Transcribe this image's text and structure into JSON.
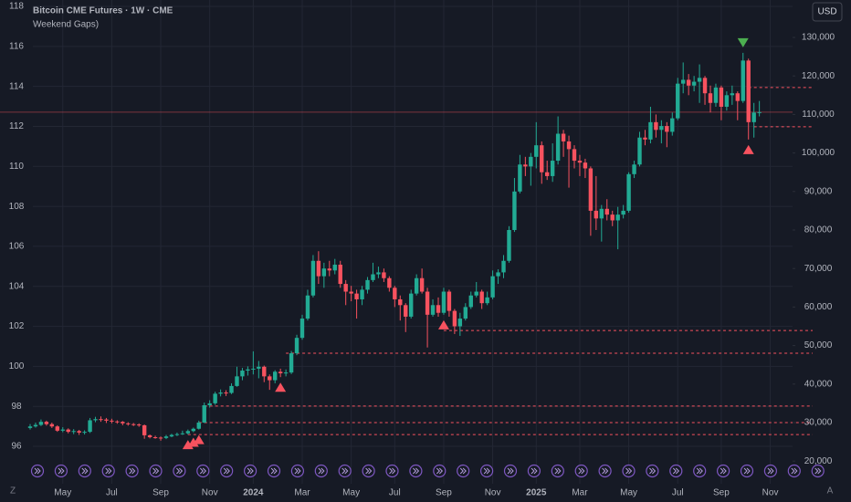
{
  "chart_data": {
    "type": "candlestick",
    "title": "Bitcoin CME Futures · 1W · CME",
    "subtitle": "Weekend Gaps)",
    "currency": "USD",
    "corner_left": "Z",
    "corner_right": "A",
    "up_color": "#22ab94",
    "down_color": "#f7525f",
    "categories": [
      null,
      null,
      null,
      null,
      null,
      null,
      "May",
      null,
      null,
      null,
      null,
      null,
      null,
      null,
      null,
      "Jul",
      null,
      null,
      null,
      null,
      null,
      null,
      null,
      null,
      "Sep",
      null,
      null,
      null,
      null,
      null,
      null,
      null,
      null,
      "Nov",
      null,
      null,
      null,
      null,
      null,
      null,
      null,
      "2024",
      null,
      null,
      null,
      null,
      null,
      null,
      null,
      null,
      "Mar",
      null,
      null,
      null,
      null,
      null,
      null,
      null,
      null,
      "May",
      null,
      null,
      null,
      null,
      null,
      null,
      null,
      "Jul",
      null,
      null,
      null,
      null,
      null,
      null,
      null,
      null,
      "Sep",
      null,
      null,
      null,
      null,
      null,
      null,
      null,
      null,
      "Nov",
      null,
      null,
      null,
      null,
      null,
      null,
      null,
      "2025",
      null,
      null,
      null,
      null,
      null,
      null,
      null,
      "Mar",
      null,
      null,
      null,
      null,
      null,
      null,
      null,
      null,
      "May",
      null,
      null,
      null,
      null,
      null,
      null,
      null,
      null,
      "Jul",
      null,
      null,
      null,
      null,
      null,
      null,
      null,
      "Sep",
      null,
      null,
      null,
      null,
      null,
      null,
      null,
      null,
      "Nov"
    ],
    "open": [
      28600,
      29000,
      29400,
      30200,
      29600,
      29000,
      27900,
      28200,
      27600,
      27800,
      27400,
      27600,
      30600,
      30900,
      30800,
      30500,
      30300,
      30200,
      29800,
      29600,
      29500,
      29300,
      26700,
      26200,
      26100,
      26000,
      26400,
      26800,
      27000,
      27200,
      27800,
      28400,
      30000,
      34500,
      35000,
      37500,
      37800,
      37700,
      39500,
      42000,
      43500,
      43800,
      44000,
      44500,
      42000,
      41000,
      43200,
      42800,
      43000,
      48000,
      52000,
      57000,
      63000,
      72000,
      68000,
      70000,
      69500,
      71000,
      66000,
      64000,
      63500,
      62000,
      64500,
      67000,
      68500,
      69000,
      67500,
      65000,
      62000,
      60500,
      57500,
      63500,
      67500,
      64000,
      58000,
      60500,
      58500,
      64000,
      59000,
      55000,
      57000,
      60000,
      63000,
      64000,
      61000,
      62500,
      68000,
      69000,
      72000,
      80000,
      90000,
      97000,
      96500,
      99000,
      102000,
      95000,
      94000,
      98000,
      105000,
      103000,
      101000,
      98000,
      97500,
      96000,
      85000,
      83000,
      85500,
      84000,
      82500,
      84000,
      85000,
      94500,
      97000,
      104000,
      103500,
      108000,
      106000,
      107000,
      105500,
      109000,
      118000,
      119000,
      117500,
      118500,
      119500,
      115500,
      113000,
      117000,
      112000,
      115000,
      115500,
      113500,
      124000,
      108000,
      110500,
      null,
      null
    ],
    "high": [
      29600,
      30000,
      30800,
      30500,
      30000,
      29300,
      28800,
      28500,
      28300,
      28100,
      28000,
      31200,
      31500,
      31600,
      31200,
      31000,
      30600,
      30400,
      30100,
      29900,
      29800,
      29500,
      26900,
      26600,
      26400,
      26800,
      27100,
      27400,
      27900,
      28200,
      28700,
      30500,
      35200,
      35800,
      38000,
      38600,
      38400,
      40200,
      44500,
      44200,
      44600,
      48500,
      46000,
      44800,
      42500,
      43600,
      44000,
      43800,
      48600,
      52800,
      58000,
      64500,
      73500,
      74500,
      71500,
      72000,
      72500,
      72000,
      67000,
      65500,
      64500,
      65500,
      67800,
      71500,
      70500,
      70000,
      68000,
      65500,
      63000,
      61000,
      64500,
      68500,
      70000,
      65000,
      62000,
      62500,
      65000,
      64500,
      59500,
      58500,
      61000,
      64000,
      66500,
      64500,
      64000,
      69500,
      69800,
      73500,
      81000,
      93500,
      99500,
      99000,
      100000,
      108000,
      103000,
      98000,
      102500,
      109500,
      106000,
      104500,
      102000,
      99500,
      98500,
      96500,
      94000,
      86500,
      88000,
      85000,
      86000,
      86500,
      95000,
      98000,
      105500,
      106000,
      112000,
      110000,
      108500,
      108000,
      110500,
      119500,
      123500,
      120500,
      120000,
      123000,
      120000,
      117500,
      118000,
      117500,
      116000,
      117500,
      116000,
      126000,
      124500,
      113000,
      113500,
      null,
      null
    ],
    "low": [
      28200,
      28700,
      29100,
      29200,
      28600,
      27600,
      27500,
      27200,
      27000,
      26800,
      26900,
      27300,
      30100,
      30200,
      29900,
      29800,
      29700,
      29300,
      29200,
      29100,
      28900,
      25800,
      25900,
      25800,
      25300,
      25700,
      26200,
      26500,
      26800,
      26900,
      27500,
      28200,
      29900,
      33900,
      34600,
      36800,
      36900,
      37400,
      39300,
      41000,
      42200,
      42500,
      41500,
      40500,
      38500,
      40200,
      41800,
      42000,
      42600,
      47500,
      51500,
      56500,
      62500,
      66000,
      65000,
      68000,
      68500,
      65000,
      60500,
      61500,
      57000,
      60500,
      63500,
      66500,
      67500,
      66500,
      64000,
      60000,
      56500,
      53500,
      57000,
      63000,
      63500,
      49500,
      57500,
      57500,
      58000,
      57500,
      53000,
      52500,
      56500,
      59500,
      62500,
      59500,
      60500,
      62000,
      66000,
      67500,
      71500,
      79500,
      89500,
      94000,
      91500,
      96000,
      92000,
      93000,
      92500,
      97000,
      99000,
      91000,
      96000,
      94000,
      93500,
      78500,
      80000,
      77000,
      82500,
      81000,
      75000,
      83000,
      84500,
      93500,
      96500,
      102000,
      102500,
      104000,
      102500,
      101500,
      104500,
      108500,
      115500,
      115000,
      116000,
      113000,
      112500,
      110500,
      112000,
      108500,
      111000,
      112500,
      108500,
      113000,
      103500,
      104000,
      109500,
      null,
      null
    ],
    "close": [
      29000,
      29400,
      30200,
      29600,
      29000,
      27900,
      28200,
      27600,
      27800,
      27400,
      27600,
      30600,
      30900,
      30800,
      30500,
      30300,
      30200,
      29800,
      29600,
      29500,
      29300,
      26700,
      26200,
      26100,
      26000,
      26400,
      26800,
      27000,
      27200,
      27800,
      28400,
      30000,
      34500,
      35000,
      37500,
      37800,
      37700,
      39500,
      42000,
      43500,
      43800,
      44000,
      44500,
      42000,
      41000,
      43200,
      42800,
      43000,
      48000,
      52000,
      57000,
      63000,
      72000,
      68000,
      70000,
      69500,
      71000,
      66000,
      64000,
      63500,
      62000,
      64500,
      67000,
      68500,
      69000,
      67500,
      65000,
      62000,
      60500,
      57500,
      63500,
      67500,
      64000,
      58000,
      60500,
      58500,
      64000,
      59000,
      55000,
      57000,
      60000,
      63000,
      64000,
      61000,
      62500,
      68000,
      69000,
      72000,
      80000,
      90000,
      97000,
      96500,
      99000,
      102000,
      95000,
      94000,
      98000,
      105000,
      103000,
      101000,
      98000,
      97500,
      96000,
      85000,
      83000,
      85500,
      84000,
      82500,
      84000,
      85000,
      94500,
      97000,
      104000,
      103500,
      108000,
      106000,
      107000,
      105500,
      109000,
      118000,
      119000,
      117500,
      118500,
      119500,
      115500,
      113000,
      117000,
      112000,
      115000,
      115500,
      113500,
      124000,
      108000,
      110500,
      110600,
      null,
      null
    ],
    "gaps": [
      {
        "value": 117000,
        "from": 132
      },
      {
        "value": 106800,
        "from": 133
      },
      {
        "value": 53900,
        "from": 76
      },
      {
        "value": 48000,
        "from": 47
      },
      {
        "value": 34300,
        "from": 32
      },
      {
        "value": 30000,
        "from": 31
      },
      {
        "value": 26900,
        "from": 29
      }
    ],
    "gap_color": "#f7525f",
    "up_markers": [
      29,
      30,
      31,
      46,
      76,
      132
    ],
    "down_markers": [
      131
    ],
    "ylim": [
      14120,
      139720
    ],
    "yticks": [
      {
        "value": 20000,
        "label": "20,000"
      },
      {
        "value": 30000,
        "label": "30,000"
      },
      {
        "value": 40000,
        "label": "40,000"
      },
      {
        "value": 50000,
        "label": "50,000"
      },
      {
        "value": 60000,
        "label": "60,000"
      },
      {
        "value": 70000,
        "label": "70,000"
      },
      {
        "value": 80000,
        "label": "80,000"
      },
      {
        "value": 90000,
        "label": "90,000"
      },
      {
        "value": 100000,
        "label": "100,000"
      },
      {
        "value": 110000,
        "label": "110,000"
      },
      {
        "value": 120000,
        "label": "120,000"
      },
      {
        "value": 130000,
        "label": "130,000"
      }
    ],
    "y2lim": [
      94.13,
      118.32
    ],
    "y2ticks": [
      96,
      98,
      100,
      102,
      104,
      106,
      108,
      110,
      112,
      114,
      116,
      118
    ],
    "grid": true
  }
}
